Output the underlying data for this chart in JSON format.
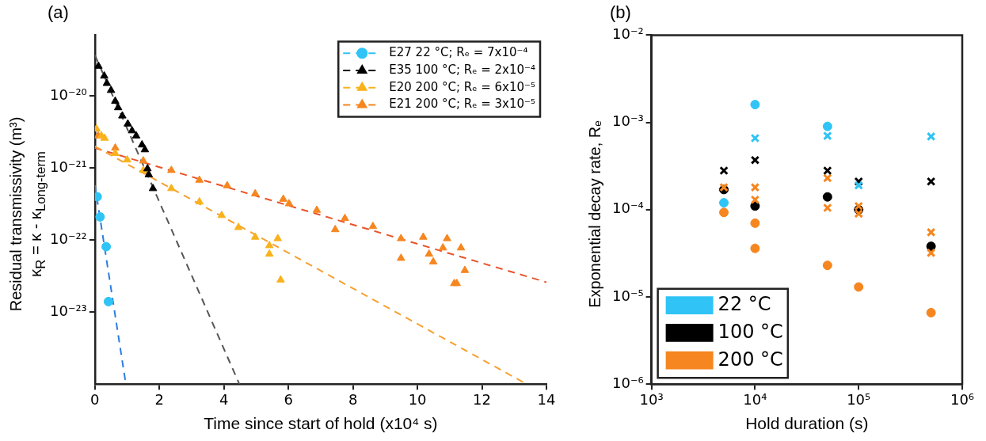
{
  "chart_data": [
    {
      "type": "scatter",
      "title": "(a)",
      "xlabel": "Time since start of hold (x10⁴ s)",
      "ylabel": "Residual transmissivity (m³)\nκ$_{R}$ = κ - κ$_{Long-term}$",
      "log": "y",
      "grid": false,
      "legend": "top right",
      "xlim": [
        0,
        14
      ],
      "xticks": [
        0,
        2,
        4,
        6,
        8,
        10,
        12,
        14
      ],
      "ylim": [
        1e-24,
        7e-20
      ],
      "yticks": [
        {
          "value": 1e-23,
          "label": "10⁻²³"
        },
        {
          "value": 1e-22,
          "label": "10⁻²²"
        },
        {
          "value": 1e-21,
          "label": "10⁻²¹"
        },
        {
          "value": 1e-20,
          "label": "10⁻²⁰"
        }
      ],
      "series": [
        {
          "type": "line",
          "color": "#2a7de1",
          "marker": "none",
          "line_style": "dashed",
          "x": [
            0,
            0.96
          ],
          "values": [
            5.8e-22,
            1e-24
          ]
        },
        {
          "type": "line",
          "color": "#555555",
          "marker": "none",
          "line_style": "dashed",
          "x": [
            0,
            4.48
          ],
          "values": [
            3.7e-20,
            1e-24
          ]
        },
        {
          "type": "line",
          "color": "#f7a030",
          "marker": "none",
          "line_style": "dashed",
          "x": [
            0,
            13.39
          ],
          "values": [
            2e-21,
            1e-24
          ]
        },
        {
          "type": "line",
          "color": "#e8542a",
          "marker": "none",
          "line_style": "dashed",
          "x": [
            0,
            14
          ],
          "values": [
            1.9e-21,
            2.6e-23
          ]
        },
        {
          "name": "E27 22 °C; Rₑ = 7x10⁻⁴",
          "color": "#2fc4f5",
          "marker": "circle",
          "x": [
            0.07,
            0.16,
            0.35,
            0.42
          ],
          "values": [
            4e-22,
            2.1e-22,
            8.1e-23,
            1.4e-23
          ]
        },
        {
          "name": "E35 100 °C; Rₑ = 2x10⁻⁴",
          "color": "#000000",
          "marker": "triangle",
          "x": [
            0.11,
            0.29,
            0.37,
            0.5,
            0.63,
            0.72,
            0.85,
            1.02,
            1.15,
            1.28,
            1.46,
            1.55,
            1.63,
            1.67,
            1.8
          ],
          "values": [
            2.6e-20,
            1.9e-20,
            1.5e-20,
            1.2e-20,
            8.5e-21,
            6.9e-21,
            5.3e-21,
            4.1e-21,
            3.3e-21,
            2.8e-21,
            2.1e-21,
            1.8e-21,
            9.8e-22,
            8.1e-22,
            5.2e-22
          ]
        },
        {
          "name": "E20 200 °C; Rₑ = 6x10⁻⁵",
          "color": "#f9b21c",
          "marker": "triangle",
          "x": [
            0.05,
            0.2,
            0.3,
            0.63,
            1.0,
            1.5,
            2.37,
            3.24,
            3.93,
            4.45,
            4.97,
            5.41,
            5.67,
            5.41,
            5.76
          ],
          "values": [
            3.5e-21,
            2.8e-21,
            2.6e-21,
            1.6e-21,
            1.3e-21,
            9.3e-22,
            5.2e-22,
            3.4e-22,
            2.2e-22,
            1.5e-22,
            1.1e-22,
            8.4e-23,
            1.05e-22,
            6.4e-23,
            2.8e-23
          ]
        },
        {
          "name": "E21 200 °C; Rₑ = 3x10⁻⁵",
          "color": "#f6861f",
          "marker": "triangle",
          "x": [
            0.1,
            0.63,
            1.5,
            2.37,
            3.24,
            4.1,
            4.97,
            5.84,
            6.02,
            6.88,
            7.45,
            7.75,
            8.62,
            9.49,
            9.49,
            10.18,
            10.36,
            10.49,
            10.79,
            10.92,
            11.14,
            11.22,
            11.35,
            11.47
          ],
          "values": [
            2.8e-21,
            1.9e-21,
            1.26e-21,
            9.3e-22,
            6.8e-22,
            5.7e-22,
            4.4e-22,
            3.7e-22,
            3.2e-22,
            2.6e-22,
            1.4e-22,
            2e-22,
            1.55e-22,
            1.05e-22,
            5.6e-23,
            1.1e-22,
            6.4e-23,
            5e-23,
            7.8e-23,
            1.05e-22,
            2.5e-23,
            2.5e-23,
            7.8e-23,
            3.8e-23
          ]
        }
      ]
    },
    {
      "type": "scatter",
      "title": "(b)",
      "xlabel": "Hold duration (s)",
      "ylabel": "Exponential decay rate, Rₑ",
      "log": "xy",
      "grid": false,
      "legend": "bottom left",
      "xlim": [
        1000,
        1000000
      ],
      "xticks": [
        {
          "value": 1000,
          "label": "10³"
        },
        {
          "value": 10000,
          "label": "10⁴"
        },
        {
          "value": 100000,
          "label": "10⁵"
        },
        {
          "value": 1000000,
          "label": "10⁶"
        }
      ],
      "ylim": [
        1e-06,
        0.01
      ],
      "yticks": [
        {
          "value": 1e-06,
          "label": "10⁻⁶"
        },
        {
          "value": 1e-05,
          "label": "10⁻⁵"
        },
        {
          "value": 0.0001,
          "label": "10⁻⁴"
        },
        {
          "value": 0.001,
          "label": "10⁻³"
        },
        {
          "value": 0.01,
          "label": "10⁻²"
        }
      ],
      "series": [
        {
          "name": "22 °C",
          "color": "#2fc4f5",
          "marker": "circle",
          "x": [
            10000,
            50000,
            5000
          ],
          "values": [
            0.0016,
            0.0009,
            0.00012
          ]
        },
        {
          "name": "100 °C",
          "color": "#000000",
          "marker": "circle",
          "x": [
            5000,
            10000,
            50000,
            100000,
            500000
          ],
          "values": [
            0.00017,
            0.00011,
            0.00014,
            0.0001,
            3.8e-05
          ]
        },
        {
          "name": "200 °C",
          "color": "#f6861f",
          "marker": "circle",
          "x": [
            5000,
            10000,
            10000,
            50000,
            100000,
            500000
          ],
          "values": [
            9.3e-05,
            7e-05,
            3.6e-05,
            2.3e-05,
            1.3e-05,
            6.6e-06
          ]
        },
        {
          "color": "#2fc4f5",
          "marker": "cross",
          "x": [
            10000,
            50000,
            100000,
            500000
          ],
          "values": [
            0.00066,
            0.0007,
            0.00019,
            0.00069
          ]
        },
        {
          "color": "#000000",
          "marker": "cross",
          "x": [
            5000,
            10000,
            50000,
            100000,
            500000
          ],
          "values": [
            0.00028,
            0.00037,
            0.00028,
            0.00021,
            0.00021
          ]
        },
        {
          "color": "#f6861f",
          "marker": "cross",
          "x": [
            5000,
            10000,
            10000,
            50000,
            50000,
            100000,
            100000,
            500000,
            500000
          ],
          "values": [
            0.00018,
            0.00018,
            0.00013,
            0.00023,
            0.000105,
            0.00011,
            9e-05,
            5.5e-05,
            3.2e-05
          ]
        }
      ]
    }
  ]
}
